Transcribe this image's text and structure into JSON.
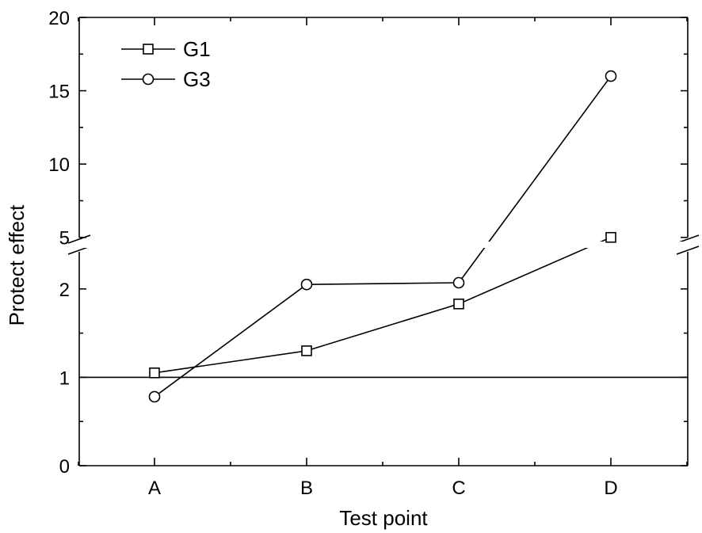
{
  "chart_data": {
    "type": "line",
    "xlabel": "Test point",
    "ylabel": "Protect effect",
    "categories": [
      "A",
      "B",
      "C",
      "D"
    ],
    "series": [
      {
        "name": "G1",
        "marker": "square",
        "values": [
          1.05,
          1.3,
          1.83,
          5.0
        ]
      },
      {
        "name": "G3",
        "marker": "circle",
        "values": [
          0.78,
          2.05,
          2.07,
          16.0
        ]
      }
    ],
    "y_axis": {
      "broken": true,
      "lower_segment": {
        "range": [
          0,
          2.5
        ],
        "ticks": [
          0,
          1,
          2
        ],
        "tick_labels": [
          "0",
          "1",
          "2"
        ]
      },
      "upper_segment": {
        "range": [
          4.5,
          20
        ],
        "ticks": [
          5,
          10,
          15,
          20
        ],
        "tick_labels": [
          "5",
          "10",
          "15",
          "20"
        ]
      }
    },
    "reference_line": {
      "y": 1
    },
    "legend": {
      "position": "top-left",
      "entries": [
        "G1",
        "G3"
      ]
    },
    "grid": false,
    "colors": {
      "line": "#000000",
      "marker_fill": "#ffffff"
    }
  }
}
